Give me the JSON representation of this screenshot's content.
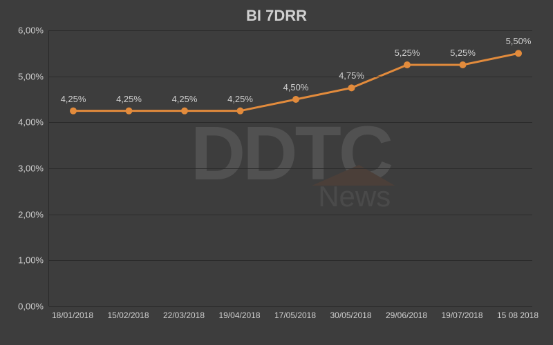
{
  "chart": {
    "type": "line",
    "title": "BI 7DRR",
    "title_fontsize": 22,
    "title_color": "#d0d0d0",
    "background_color": "#3d3d3d",
    "grid_color": "#2a2a2a",
    "axis_label_color": "#d0d0d0",
    "axis_fontsize": 13,
    "line_color": "#e28b3c",
    "line_width": 3,
    "marker_color": "#e28b3c",
    "marker_size": 5,
    "ylim": [
      0,
      6
    ],
    "ytick_step": 1,
    "y_format_suffix": ",00%",
    "categories": [
      "18/01/2018",
      "15/02/2018",
      "22/03/2018",
      "19/04/2018",
      "17/05/2018",
      "30/05/2018",
      "29/06/2018",
      "19/07/2018",
      "15 08 2018"
    ],
    "values": [
      4.25,
      4.25,
      4.25,
      4.25,
      4.5,
      4.75,
      5.25,
      5.25,
      5.5
    ],
    "value_labels": [
      "4,25%",
      "4,25%",
      "4,25%",
      "4,25%",
      "4,50%",
      "4,75%",
      "5,25%",
      "5,25%",
      "5,50%"
    ],
    "data_label_color": "#d0d0d0",
    "data_label_fontsize": 13
  },
  "watermark": {
    "main": "DDTC",
    "sub": "News",
    "opacity": 0.18,
    "text_color": "#aaaaaa",
    "accent_color": "#8b4a2a"
  }
}
